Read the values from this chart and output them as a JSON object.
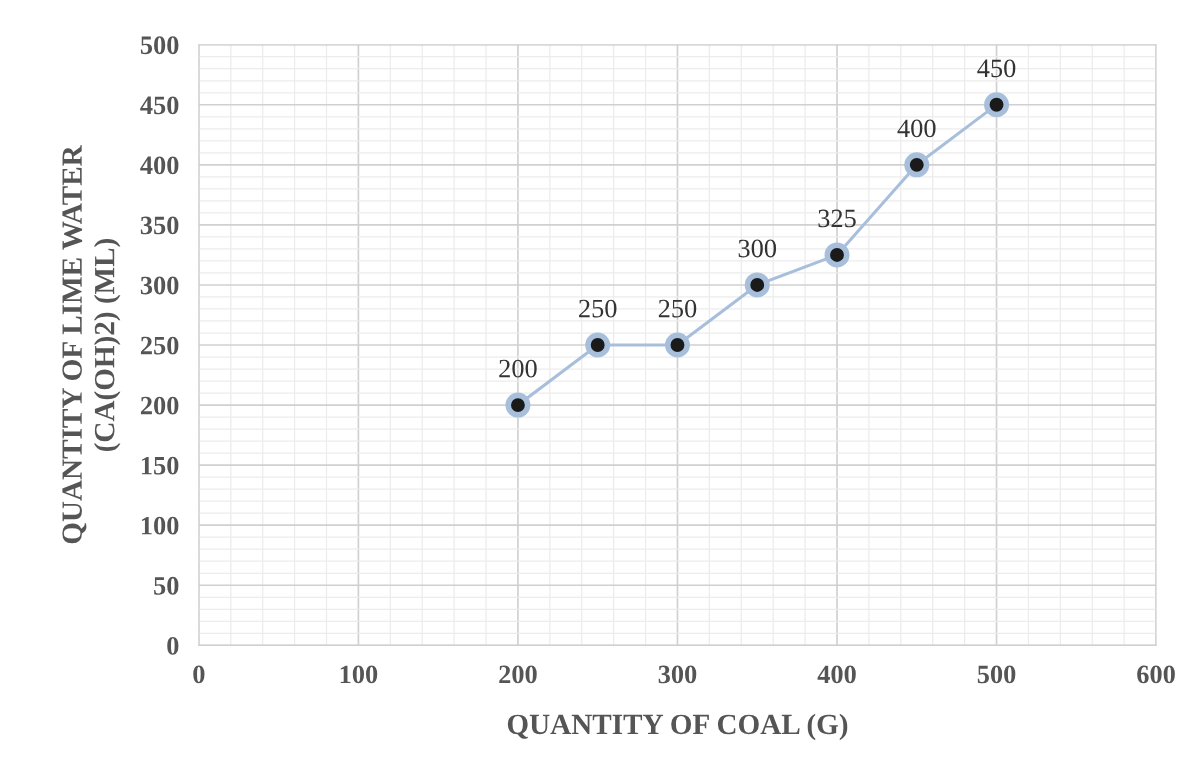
{
  "chart_data": {
    "type": "line",
    "xlabel": "QUANTITY OF COAL (G)",
    "ylabel": "QUANTITY OF LIME WATER\n(CA(OH)2) (ML)",
    "series": [
      {
        "x": [
          200,
          250,
          300,
          350,
          400,
          450,
          500
        ],
        "values": [
          200,
          250,
          250,
          300,
          325,
          400,
          450
        ],
        "color": "#a8bfdc"
      }
    ],
    "xlim": [
      0,
      600
    ],
    "xticks": [
      0,
      100,
      200,
      300,
      400,
      500,
      600
    ],
    "ylim": [
      0,
      500
    ],
    "yticks": [
      0,
      50,
      100,
      150,
      200,
      250,
      300,
      350,
      400,
      450,
      500
    ],
    "grid": true,
    "marker": "circle",
    "line_style": "solid",
    "data_labels": true
  }
}
